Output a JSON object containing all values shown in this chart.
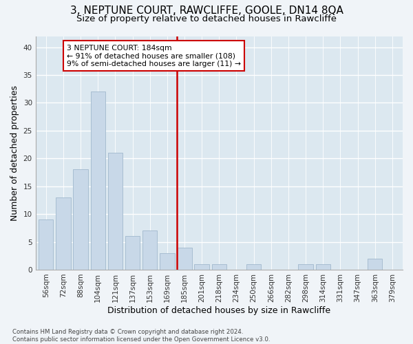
{
  "title": "3, NEPTUNE COURT, RAWCLIFFE, GOOLE, DN14 8QA",
  "subtitle": "Size of property relative to detached houses in Rawcliffe",
  "xlabel": "Distribution of detached houses by size in Rawcliffe",
  "ylabel": "Number of detached properties",
  "categories": [
    "56sqm",
    "72sqm",
    "88sqm",
    "104sqm",
    "121sqm",
    "137sqm",
    "153sqm",
    "169sqm",
    "185sqm",
    "201sqm",
    "218sqm",
    "234sqm",
    "250sqm",
    "266sqm",
    "282sqm",
    "298sqm",
    "314sqm",
    "331sqm",
    "347sqm",
    "363sqm",
    "379sqm"
  ],
  "values": [
    9,
    13,
    18,
    32,
    21,
    6,
    7,
    3,
    4,
    1,
    1,
    0,
    1,
    0,
    0,
    1,
    1,
    0,
    0,
    2,
    0
  ],
  "bar_color": "#c8d8e8",
  "bar_edgecolor": "#a0b8cc",
  "highlight_line_idx": 8,
  "highlight_line_color": "#cc0000",
  "annotation_text": "3 NEPTUNE COURT: 184sqm\n← 91% of detached houses are smaller (108)\n9% of semi-detached houses are larger (11) →",
  "annotation_box_color": "#cc0000",
  "ylim": [
    0,
    42
  ],
  "yticks": [
    0,
    5,
    10,
    15,
    20,
    25,
    30,
    35,
    40
  ],
  "fig_background": "#f0f4f8",
  "ax_background": "#dce8f0",
  "grid_color": "#ffffff",
  "footer_text": "Contains HM Land Registry data © Crown copyright and database right 2024.\nContains public sector information licensed under the Open Government Licence v3.0.",
  "title_fontsize": 11,
  "subtitle_fontsize": 9.5,
  "ylabel_fontsize": 9,
  "xlabel_fontsize": 9,
  "tick_fontsize": 7.5,
  "footer_fontsize": 6.2
}
